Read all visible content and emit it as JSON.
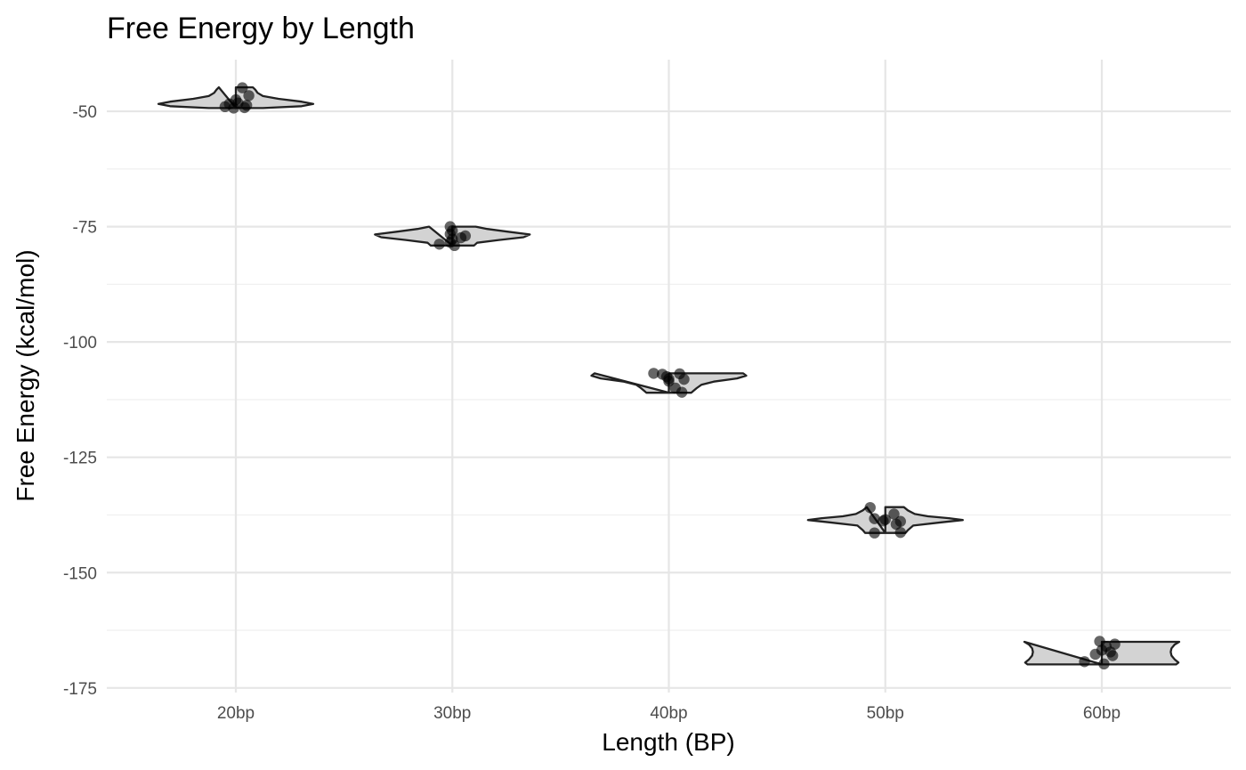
{
  "chart_data": {
    "type": "violin",
    "title": "Free Energy by Length",
    "xlabel": "Length (BP)",
    "ylabel": "Free Energy (kcal/mol)",
    "categories": [
      "20bp",
      "30bp",
      "40bp",
      "50bp",
      "60bp"
    ],
    "ylim": [
      -176,
      -38.8
    ],
    "yticks": [
      -50,
      -75,
      -100,
      -125,
      -150,
      -175
    ],
    "ytick_labels": [
      "-50",
      "-75",
      "-100",
      "-125",
      "-150",
      "-175"
    ],
    "grid": true,
    "legend": "none",
    "colors": {
      "violin_fill": "#d3d3d3",
      "violin_stroke": "#222222",
      "point": "#000000",
      "grid": "#e6e6e6"
    },
    "series": [
      {
        "category": "20bp",
        "points": [
          {
            "x": 20.3,
            "y": -44.9
          },
          {
            "x": 20.6,
            "y": -46.6
          },
          {
            "x": 20.0,
            "y": -47.5
          },
          {
            "x": 20.1,
            "y": -48.2
          },
          {
            "x": 19.7,
            "y": -48.4
          },
          {
            "x": 20.5,
            "y": -48.7
          },
          {
            "x": 19.5,
            "y": -49.0
          },
          {
            "x": 20.4,
            "y": -49.2
          },
          {
            "x": 19.9,
            "y": -49.3
          }
        ],
        "density_profile": [
          {
            "y": -44.8,
            "w": 0.22
          },
          {
            "y": -45.3,
            "w": 0.25
          },
          {
            "y": -46.0,
            "w": 0.28
          },
          {
            "y": -46.7,
            "w": 0.35
          },
          {
            "y": -47.3,
            "w": 0.55
          },
          {
            "y": -47.9,
            "w": 0.85
          },
          {
            "y": -48.4,
            "w": 1.0
          },
          {
            "y": -48.9,
            "w": 0.85
          },
          {
            "y": -49.3,
            "w": 0.35
          }
        ]
      },
      {
        "category": "30bp",
        "points": [
          {
            "x": 29.9,
            "y": -75.0
          },
          {
            "x": 30.0,
            "y": -75.9
          },
          {
            "x": 29.9,
            "y": -76.6
          },
          {
            "x": 30.6,
            "y": -77.0
          },
          {
            "x": 30.4,
            "y": -77.4
          },
          {
            "x": 30.0,
            "y": -77.7
          },
          {
            "x": 29.9,
            "y": -78.4
          },
          {
            "x": 29.4,
            "y": -78.8
          },
          {
            "x": 30.1,
            "y": -79.1
          }
        ],
        "density_profile": [
          {
            "y": -75.0,
            "w": 0.3
          },
          {
            "y": -75.5,
            "w": 0.45
          },
          {
            "y": -76.1,
            "w": 0.72
          },
          {
            "y": -76.7,
            "w": 1.0
          },
          {
            "y": -77.3,
            "w": 0.92
          },
          {
            "y": -77.9,
            "w": 0.6
          },
          {
            "y": -78.5,
            "w": 0.32
          },
          {
            "y": -79.1,
            "w": 0.28
          }
        ]
      },
      {
        "category": "40bp",
        "points": [
          {
            "x": 39.3,
            "y": -106.8
          },
          {
            "x": 39.7,
            "y": -107.0
          },
          {
            "x": 40.5,
            "y": -106.9
          },
          {
            "x": 39.9,
            "y": -107.5
          },
          {
            "x": 40.0,
            "y": -108.0
          },
          {
            "x": 40.7,
            "y": -108.1
          },
          {
            "x": 40.0,
            "y": -108.5
          },
          {
            "x": 40.3,
            "y": -110.0
          },
          {
            "x": 40.6,
            "y": -110.9
          }
        ],
        "density_profile": [
          {
            "y": -106.8,
            "w": 0.96
          },
          {
            "y": -107.3,
            "w": 1.0
          },
          {
            "y": -107.9,
            "w": 0.88
          },
          {
            "y": -108.6,
            "w": 0.58
          },
          {
            "y": -109.3,
            "w": 0.42
          },
          {
            "y": -110.0,
            "w": 0.36
          },
          {
            "y": -110.7,
            "w": 0.31
          },
          {
            "y": -111.0,
            "w": 0.29
          }
        ]
      },
      {
        "category": "50bp",
        "points": [
          {
            "x": 49.3,
            "y": -135.9
          },
          {
            "x": 50.4,
            "y": -137.3
          },
          {
            "x": 49.5,
            "y": -138.3
          },
          {
            "x": 50.0,
            "y": -138.5
          },
          {
            "x": 49.9,
            "y": -138.8
          },
          {
            "x": 50.7,
            "y": -138.9
          },
          {
            "x": 50.5,
            "y": -139.5
          },
          {
            "x": 50.7,
            "y": -141.3
          },
          {
            "x": 49.5,
            "y": -141.4
          }
        ],
        "density_profile": [
          {
            "y": -135.8,
            "w": 0.24
          },
          {
            "y": -136.5,
            "w": 0.29
          },
          {
            "y": -137.3,
            "w": 0.38
          },
          {
            "y": -137.8,
            "w": 0.55
          },
          {
            "y": -138.2,
            "w": 0.82
          },
          {
            "y": -138.6,
            "w": 1.0
          },
          {
            "y": -139.1,
            "w": 0.72
          },
          {
            "y": -139.8,
            "w": 0.36
          },
          {
            "y": -140.8,
            "w": 0.29
          },
          {
            "y": -141.4,
            "w": 0.26
          }
        ]
      },
      {
        "category": "60bp",
        "points": [
          {
            "x": 59.9,
            "y": -164.9
          },
          {
            "x": 60.6,
            "y": -165.5
          },
          {
            "x": 60.2,
            "y": -166.0
          },
          {
            "x": 60.0,
            "y": -166.8
          },
          {
            "x": 60.4,
            "y": -167.2
          },
          {
            "x": 59.7,
            "y": -167.7
          },
          {
            "x": 60.5,
            "y": -168.0
          },
          {
            "x": 59.2,
            "y": -169.3
          },
          {
            "x": 60.1,
            "y": -169.8
          }
        ],
        "density_profile": [
          {
            "y": -165.0,
            "w": 1.0
          },
          {
            "y": -165.6,
            "w": 0.94
          },
          {
            "y": -166.4,
            "w": 0.9
          },
          {
            "y": -167.2,
            "w": 0.89
          },
          {
            "y": -168.0,
            "w": 0.9
          },
          {
            "y": -168.8,
            "w": 0.94
          },
          {
            "y": -169.5,
            "w": 0.99
          },
          {
            "y": -169.9,
            "w": 0.96
          }
        ]
      }
    ]
  }
}
